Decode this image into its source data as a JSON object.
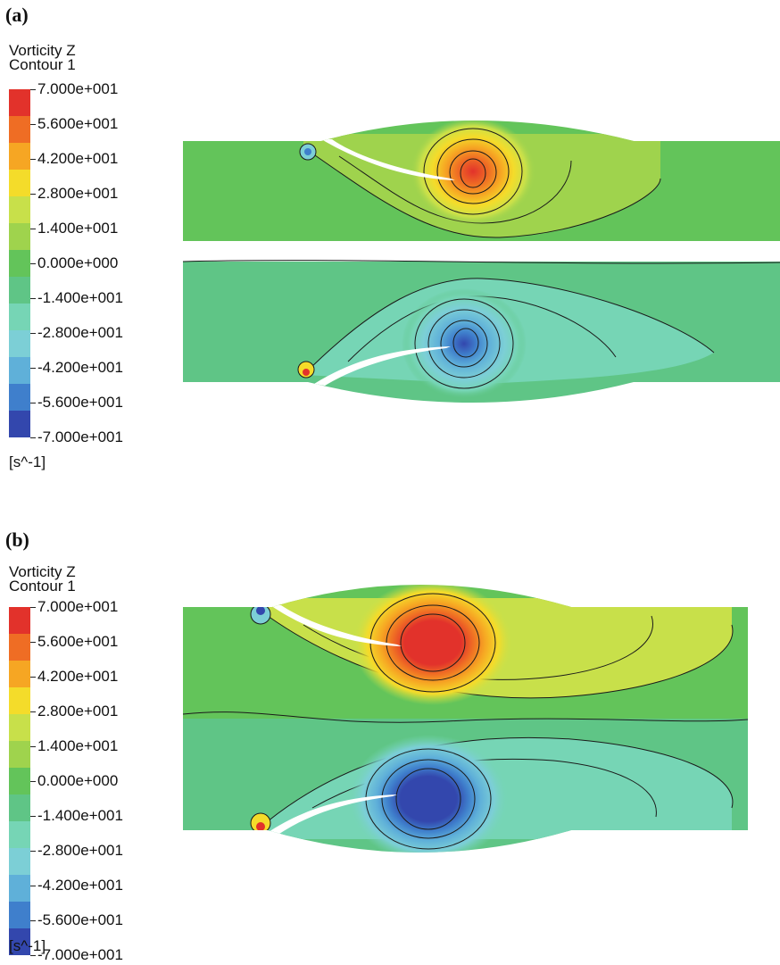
{
  "panels": [
    {
      "label": "(a)",
      "legend_title_1": "Vorticity Z",
      "legend_title_2": "Contour 1",
      "ticks": [
        "7.000e+001",
        "5.600e+001",
        "4.200e+001",
        "2.800e+001",
        "1.400e+001",
        "0.000e+000",
        "-1.400e+001",
        "-2.800e+001",
        "-4.200e+001",
        "-5.600e+001",
        "-7.000e+001"
      ],
      "unit": "[s^-1]"
    },
    {
      "label": "(b)",
      "legend_title_1": "Vorticity Z",
      "legend_title_2": "Contour 1",
      "ticks": [
        "7.000e+001",
        "5.600e+001",
        "4.200e+001",
        "2.800e+001",
        "1.400e+001",
        "0.000e+000",
        "-1.400e+001",
        "-2.800e+001",
        "-4.200e+001",
        "-5.600e+001",
        "-7.000e+001"
      ],
      "unit": "[s^-1]"
    }
  ],
  "colormap": [
    "#e2322b",
    "#ef6d24",
    "#f6a623",
    "#f4dc2a",
    "#c8e04a",
    "#9fd34d",
    "#63c45a",
    "#5fc586",
    "#76d5b5",
    "#7ccfd6",
    "#5fb0d9",
    "#3f7fcc",
    "#3347ad"
  ],
  "colors": {
    "background": "#ffffff",
    "line": "#1a1a1a"
  }
}
